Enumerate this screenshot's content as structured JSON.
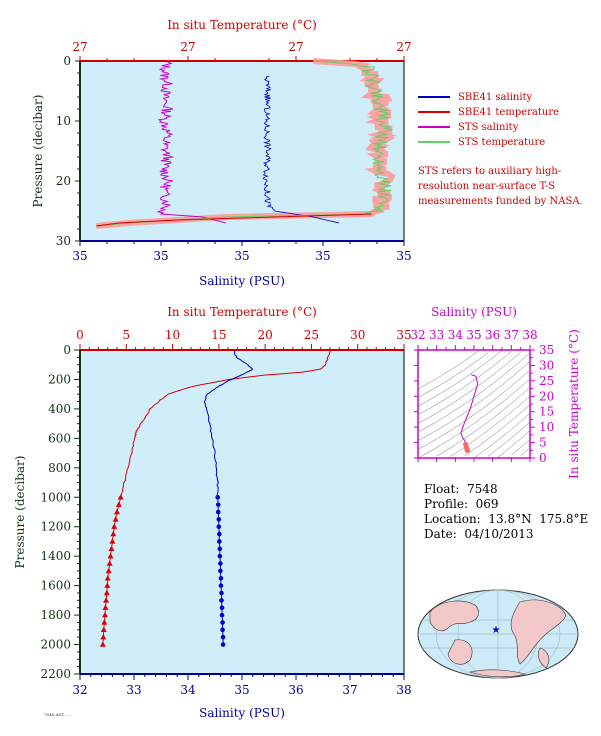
{
  "colors": {
    "sbe_salinity": "#0000cc",
    "sbe_temperature": "#dd0000",
    "sts_salinity": "#cc00cc",
    "sts_temperature": "#66cc66",
    "sts_temperature_fill": "#ff9999",
    "plot_bg": "#d0eefa",
    "temp_axis": "#cc0000",
    "sal_axis": "#000099",
    "pressure_axis": "#113311",
    "ts_axis": "#cc00cc"
  },
  "legend": {
    "items": [
      {
        "label": "SBE41 salinity",
        "color": "#0000cc"
      },
      {
        "label": "SBE41 temperature",
        "color": "#dd0000"
      },
      {
        "label": "STS salinity",
        "color": "#cc00cc"
      },
      {
        "label": "STS temperature",
        "color": "#66cc66"
      }
    ],
    "note": "STS refers to auxiliary high-resolution near-surface T-S measurements funded by NASA."
  },
  "info": {
    "float": "Float:  7548",
    "profile": "Profile:  069",
    "location": "Location:  13.8°N  175.8°E",
    "date": "Date:  04/10/2013"
  },
  "footer": "7548 AST... ...",
  "chart_data": [
    {
      "type": "line",
      "name": "near-surface profile",
      "title": "In situ Temperature (°C)",
      "xlabel": "Salinity (PSU)",
      "ylabel": "Pressure (decibar)",
      "top_ticks": [
        "27",
        "27",
        "27",
        "27"
      ],
      "bottom_ticks": [
        "35",
        "35",
        "35",
        "35",
        "35"
      ],
      "y_ticks": [
        "0",
        "10",
        "20",
        "30"
      ],
      "ylim": [
        30,
        0
      ],
      "series": [
        {
          "name": "STS salinity",
          "pressure": [
            0,
            2,
            4,
            6,
            8,
            10,
            12,
            14,
            16,
            18,
            20,
            22,
            24,
            25.5,
            26,
            27
          ],
          "x_frac": [
            0.27,
            0.26,
            0.27,
            0.26,
            0.27,
            0.26,
            0.27,
            0.26,
            0.27,
            0.26,
            0.27,
            0.26,
            0.27,
            0.25,
            0.38,
            0.45
          ]
        },
        {
          "name": "SBE41 salinity",
          "pressure": [
            2.5,
            5,
            10,
            15,
            20,
            24,
            25,
            26,
            27
          ],
          "x_frac": [
            0.575,
            0.58,
            0.575,
            0.58,
            0.575,
            0.58,
            0.6,
            0.72,
            0.8
          ]
        },
        {
          "name": "STS temperature",
          "pressure": [
            0,
            0.5,
            1,
            3,
            6,
            9,
            12,
            15,
            18,
            21,
            24,
            25.5,
            26,
            27,
            27.5
          ],
          "x_frac": [
            0.72,
            0.85,
            0.89,
            0.9,
            0.92,
            0.93,
            0.94,
            0.92,
            0.93,
            0.94,
            0.93,
            0.9,
            0.45,
            0.15,
            0.05
          ]
        },
        {
          "name": "SBE41 temperature",
          "pressure": [
            25.5,
            26,
            26.5,
            27,
            27.5
          ],
          "x_frac": [
            0.9,
            0.6,
            0.3,
            0.12,
            0.05
          ]
        }
      ]
    },
    {
      "type": "line",
      "name": "full profile",
      "title": "In situ Temperature (°C)",
      "xlabel": "Salinity (PSU)",
      "ylabel": "Pressure (decibar)",
      "temp_ticks": [
        0,
        5,
        10,
        15,
        20,
        25,
        30,
        35
      ],
      "salinity_ticks": [
        32,
        33,
        34,
        35,
        36,
        37,
        38
      ],
      "pressure_ticks": [
        0,
        200,
        400,
        600,
        800,
        1000,
        1200,
        1400,
        1600,
        1800,
        2000,
        2200
      ],
      "temp_range": [
        0,
        35
      ],
      "salinity_range": [
        32,
        38
      ],
      "pressure_range": [
        0,
        2200
      ],
      "series": [
        {
          "name": "SBE41 temperature",
          "pressure": [
            5,
            50,
            100,
            130,
            150,
            170,
            200,
            250,
            300,
            350,
            400,
            450,
            500,
            550,
            600,
            700,
            800,
            900,
            1000
          ],
          "values": [
            27,
            26.8,
            26.5,
            26,
            24,
            20,
            16,
            12,
            9.5,
            8.5,
            7.6,
            7.1,
            6.6,
            6.1,
            5.9,
            5.6,
            5.2,
            4.8,
            4.4
          ]
        },
        {
          "name": "SBE41 temperature (binned)",
          "pressure": [
            1000,
            1050,
            1100,
            1150,
            1200,
            1250,
            1300,
            1350,
            1400,
            1450,
            1500,
            1550,
            1600,
            1650,
            1700,
            1750,
            1800,
            1850,
            1900,
            1950,
            2000
          ],
          "values": [
            4.4,
            4.2,
            4.0,
            3.85,
            3.7,
            3.6,
            3.5,
            3.4,
            3.3,
            3.2,
            3.1,
            3.0,
            2.95,
            2.9,
            2.82,
            2.75,
            2.7,
            2.63,
            2.57,
            2.52,
            2.47
          ]
        },
        {
          "name": "SBE41 salinity",
          "pressure": [
            5,
            50,
            100,
            130,
            160,
            200,
            250,
            300,
            350,
            400,
            500,
            600,
            700,
            800,
            900,
            1000
          ],
          "values": [
            34.85,
            34.9,
            35.1,
            35.2,
            35.05,
            34.8,
            34.55,
            34.35,
            34.3,
            34.35,
            34.4,
            34.45,
            34.5,
            34.52,
            34.55,
            34.55
          ]
        },
        {
          "name": "SBE41 salinity (binned)",
          "pressure": [
            1000,
            1050,
            1100,
            1150,
            1200,
            1250,
            1300,
            1350,
            1400,
            1450,
            1500,
            1550,
            1600,
            1650,
            1700,
            1750,
            1800,
            1850,
            1900,
            1950,
            2000
          ],
          "values": [
            34.55,
            34.56,
            34.56,
            34.57,
            34.57,
            34.58,
            34.58,
            34.59,
            34.59,
            34.6,
            34.6,
            34.61,
            34.61,
            34.62,
            34.62,
            34.63,
            34.63,
            34.64,
            34.64,
            34.65,
            34.65
          ]
        }
      ]
    },
    {
      "type": "scatter",
      "name": "T-S diagram",
      "title": "Salinity (PSU)",
      "ylabel": "In situ Temperature (°C)",
      "x_ticks": [
        32,
        33,
        34,
        35,
        36,
        37,
        38
      ],
      "x_tick_labels": [
        "32",
        "33",
        "34",
        "35",
        "36",
        "37",
        "38"
      ],
      "y_ticks": [
        0,
        5,
        10,
        15,
        20,
        25,
        30,
        35
      ],
      "xlim": [
        32,
        38
      ],
      "ylim": [
        0,
        35
      ],
      "series": [
        {
          "name": "profile",
          "x": [
            34.85,
            35.1,
            35.2,
            34.8,
            34.4,
            34.3,
            34.4,
            34.5,
            34.55,
            34.6,
            34.65
          ],
          "y": [
            27,
            26.5,
            24,
            16,
            10,
            8,
            6.6,
            5.6,
            4.4,
            3.3,
            2.5
          ]
        }
      ]
    },
    {
      "type": "map",
      "name": "location-map",
      "marker": {
        "lat": 13.8,
        "lon": 175.8,
        "symbol": "★"
      }
    }
  ]
}
